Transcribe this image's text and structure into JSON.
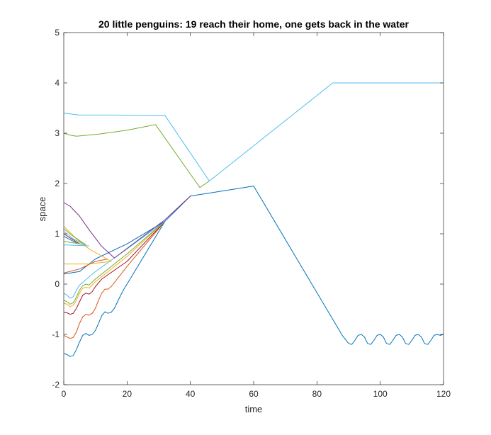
{
  "chart_data": {
    "type": "line",
    "title": "20 little penguins: 19 reach their home, one gets back in the water",
    "xlabel": "time",
    "ylabel": "space",
    "xlim": [
      0,
      120
    ],
    "ylim": [
      -2,
      5
    ],
    "xticks": [
      "0",
      "20",
      "40",
      "60",
      "80",
      "100",
      "120"
    ],
    "yticks": [
      "-2",
      "-1",
      "0",
      "1",
      "2",
      "3",
      "4",
      "5"
    ],
    "grid": false,
    "series": [
      {
        "color": "#0072bd",
        "points": [
          [
            0,
            -1.38
          ],
          [
            1,
            -1.4
          ],
          [
            2,
            -1.44
          ],
          [
            3,
            -1.42
          ],
          [
            4,
            -1.3
          ],
          [
            5,
            -1.15
          ],
          [
            6,
            -1.02
          ],
          [
            7,
            -0.98
          ],
          [
            8,
            -1.02
          ],
          [
            9,
            -1.0
          ],
          [
            10,
            -0.92
          ],
          [
            11,
            -0.78
          ],
          [
            12,
            -0.63
          ],
          [
            13,
            -0.55
          ],
          [
            14,
            -0.58
          ],
          [
            15,
            -0.56
          ],
          [
            16,
            -0.48
          ],
          [
            17,
            -0.35
          ],
          [
            18,
            -0.22
          ],
          [
            19,
            -0.1
          ],
          [
            20,
            0.0
          ],
          [
            32,
            1.25
          ],
          [
            40,
            1.75
          ],
          [
            60,
            1.95
          ],
          [
            88,
            -1.02
          ],
          [
            90,
            -1.18
          ],
          [
            91,
            -1.2
          ],
          [
            92,
            -1.12
          ],
          [
            93,
            -1.02
          ],
          [
            94,
            -1.0
          ],
          [
            95,
            -1.05
          ],
          [
            96,
            -1.18
          ],
          [
            97,
            -1.2
          ],
          [
            98,
            -1.12
          ],
          [
            99,
            -1.02
          ],
          [
            100,
            -1.0
          ],
          [
            101,
            -1.05
          ],
          [
            102,
            -1.18
          ],
          [
            103,
            -1.2
          ],
          [
            104,
            -1.12
          ],
          [
            105,
            -1.02
          ],
          [
            106,
            -1.0
          ],
          [
            107,
            -1.05
          ],
          [
            108,
            -1.18
          ],
          [
            109,
            -1.2
          ],
          [
            110,
            -1.12
          ],
          [
            111,
            -1.02
          ],
          [
            112,
            -1.0
          ],
          [
            113,
            -1.05
          ],
          [
            114,
            -1.18
          ],
          [
            115,
            -1.2
          ],
          [
            116,
            -1.12
          ],
          [
            117,
            -1.02
          ],
          [
            118,
            -1.0
          ],
          [
            119,
            -1.02
          ],
          [
            120,
            -1.0
          ]
        ]
      },
      {
        "color": "#d95319",
        "points": [
          [
            0,
            -1.02
          ],
          [
            1,
            -1.05
          ],
          [
            2,
            -1.08
          ],
          [
            3,
            -1.06
          ],
          [
            4,
            -0.95
          ],
          [
            5,
            -0.78
          ],
          [
            6,
            -0.65
          ],
          [
            7,
            -0.6
          ],
          [
            8,
            -0.62
          ],
          [
            9,
            -0.58
          ],
          [
            10,
            -0.48
          ],
          [
            11,
            -0.32
          ],
          [
            12,
            -0.18
          ],
          [
            13,
            -0.1
          ],
          [
            14,
            -0.1
          ],
          [
            15,
            -0.05
          ],
          [
            20,
            0.35
          ],
          [
            32,
            1.25
          ]
        ]
      },
      {
        "color": "#a2142f",
        "points": [
          [
            0,
            -0.56
          ],
          [
            1,
            -0.57
          ],
          [
            2,
            -0.6
          ],
          [
            3,
            -0.58
          ],
          [
            4,
            -0.48
          ],
          [
            5,
            -0.35
          ],
          [
            6,
            -0.22
          ],
          [
            7,
            -0.18
          ],
          [
            8,
            -0.2
          ],
          [
            9,
            -0.15
          ],
          [
            10,
            -0.05
          ],
          [
            12,
            0.1
          ],
          [
            20,
            0.45
          ],
          [
            32,
            1.25
          ]
        ]
      },
      {
        "color": "#edb120",
        "points": [
          [
            0,
            -0.38
          ],
          [
            1,
            -0.4
          ],
          [
            2,
            -0.45
          ],
          [
            3,
            -0.42
          ],
          [
            4,
            -0.32
          ],
          [
            5,
            -0.18
          ],
          [
            6,
            -0.08
          ],
          [
            7,
            -0.06
          ],
          [
            8,
            -0.08
          ],
          [
            10,
            0.05
          ],
          [
            20,
            0.55
          ],
          [
            32,
            1.25
          ]
        ]
      },
      {
        "color": "#77ac30",
        "points": [
          [
            0,
            -0.32
          ],
          [
            1,
            -0.35
          ],
          [
            2,
            -0.4
          ],
          [
            3,
            -0.37
          ],
          [
            4,
            -0.26
          ],
          [
            5,
            -0.12
          ],
          [
            6,
            -0.03
          ],
          [
            7,
            0.0
          ],
          [
            8,
            -0.02
          ],
          [
            10,
            0.1
          ],
          [
            20,
            0.6
          ],
          [
            32,
            1.25
          ]
        ]
      },
      {
        "color": "#4dbeee",
        "points": [
          [
            0,
            -0.18
          ],
          [
            1,
            -0.22
          ],
          [
            2,
            -0.28
          ],
          [
            3,
            -0.25
          ],
          [
            4,
            -0.12
          ],
          [
            5,
            -0.02
          ],
          [
            10,
            0.25
          ],
          [
            20,
            0.7
          ],
          [
            32,
            1.25
          ]
        ]
      },
      {
        "color": "#0072bd",
        "points": [
          [
            0,
            0.2
          ],
          [
            5,
            0.25
          ],
          [
            10,
            0.5
          ],
          [
            20,
            0.8
          ],
          [
            32,
            1.25
          ]
        ]
      },
      {
        "color": "#d95319",
        "points": [
          [
            0,
            0.22
          ],
          [
            5,
            0.3
          ],
          [
            10,
            0.45
          ],
          [
            14,
            0.5
          ]
        ]
      },
      {
        "color": "#edb120",
        "points": [
          [
            0,
            0.4
          ],
          [
            8,
            0.4
          ],
          [
            15,
            0.45
          ]
        ]
      },
      {
        "color": "#edb120",
        "points": [
          [
            0,
            1.15
          ],
          [
            4,
            0.9
          ],
          [
            8,
            0.7
          ],
          [
            15,
            0.45
          ]
        ]
      },
      {
        "color": "#77ac30",
        "points": [
          [
            0,
            1.1
          ],
          [
            3,
            0.95
          ],
          [
            7,
            0.78
          ]
        ]
      },
      {
        "color": "#4dbeee",
        "points": [
          [
            0,
            1.05
          ],
          [
            3,
            0.9
          ],
          [
            6,
            0.8
          ]
        ]
      },
      {
        "color": "#a2142f",
        "points": [
          [
            0,
            1.0
          ],
          [
            5,
            0.8
          ]
        ]
      },
      {
        "color": "#0072bd",
        "points": [
          [
            0,
            0.95
          ],
          [
            4,
            0.82
          ]
        ]
      },
      {
        "color": "#77ac30",
        "points": [
          [
            0,
            0.85
          ],
          [
            7,
            0.78
          ]
        ]
      },
      {
        "color": "#4dbeee",
        "points": [
          [
            0,
            0.78
          ],
          [
            8,
            0.76
          ]
        ]
      },
      {
        "color": "#7e2f8e",
        "points": [
          [
            0,
            1.62
          ],
          [
            2,
            1.55
          ],
          [
            5,
            1.35
          ],
          [
            8,
            1.08
          ],
          [
            12,
            0.75
          ],
          [
            16,
            0.52
          ],
          [
            24,
            0.9
          ],
          [
            32,
            1.28
          ],
          [
            40,
            1.75
          ]
        ]
      },
      {
        "color": "#77ac30",
        "points": [
          [
            0,
            3.0
          ],
          [
            2,
            2.96
          ],
          [
            4,
            2.94
          ],
          [
            11,
            2.98
          ],
          [
            20,
            3.06
          ],
          [
            29,
            3.17
          ],
          [
            43,
            1.92
          ],
          [
            46,
            2.05
          ]
        ]
      },
      {
        "color": "#4dbeee",
        "points": [
          [
            0,
            3.4
          ],
          [
            5,
            3.36
          ],
          [
            15,
            3.36
          ],
          [
            32,
            3.35
          ],
          [
            46,
            2.05
          ],
          [
            85,
            4.0
          ],
          [
            120,
            4.0
          ]
        ]
      }
    ]
  }
}
